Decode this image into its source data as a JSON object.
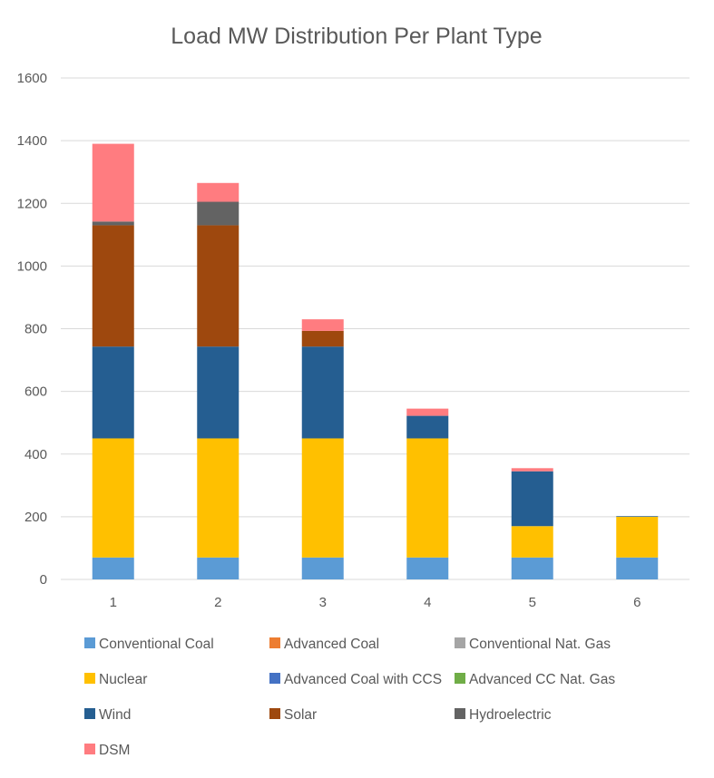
{
  "chart_data": {
    "type": "bar",
    "stacked": true,
    "title": "Load MW Distribution Per Plant Type",
    "xlabel": "",
    "ylabel": "",
    "ylim": [
      0,
      1600
    ],
    "yticks": [
      0,
      200,
      400,
      600,
      800,
      1000,
      1200,
      1400,
      1600
    ],
    "grid": true,
    "legend_position": "bottom",
    "categories": [
      "1",
      "2",
      "3",
      "4",
      "5",
      "6"
    ],
    "series": [
      {
        "name": "Conventional Coal",
        "color": "#5B9BD5",
        "values": [
          70,
          70,
          70,
          70,
          70,
          70
        ]
      },
      {
        "name": "Advanced Coal",
        "color": "#ED7D31",
        "values": [
          0,
          0,
          0,
          0,
          0,
          0
        ]
      },
      {
        "name": "Conventional Nat. Gas",
        "color": "#A5A5A5",
        "values": [
          0,
          0,
          0,
          0,
          0,
          0
        ]
      },
      {
        "name": "Nuclear",
        "color": "#FFC000",
        "values": [
          380,
          380,
          380,
          380,
          100,
          130
        ]
      },
      {
        "name": "Advanced Coal with CCS",
        "color": "#4472C4",
        "values": [
          0,
          0,
          0,
          0,
          0,
          0
        ]
      },
      {
        "name": "Advanced CC Nat. Gas",
        "color": "#70AD47",
        "values": [
          0,
          0,
          0,
          0,
          0,
          0
        ]
      },
      {
        "name": "Wind",
        "color": "#255E91",
        "values": [
          293,
          293,
          293,
          72,
          175,
          2
        ]
      },
      {
        "name": "Solar",
        "color": "#9E480E",
        "values": [
          387,
          387,
          50,
          0,
          0,
          0
        ]
      },
      {
        "name": "Hydroelectric",
        "color": "#636363",
        "values": [
          12,
          75,
          0,
          0,
          0,
          0
        ]
      },
      {
        "name": "DSM",
        "color": "#FF7C80",
        "values": [
          248,
          60,
          37,
          23,
          10,
          0
        ]
      }
    ]
  }
}
